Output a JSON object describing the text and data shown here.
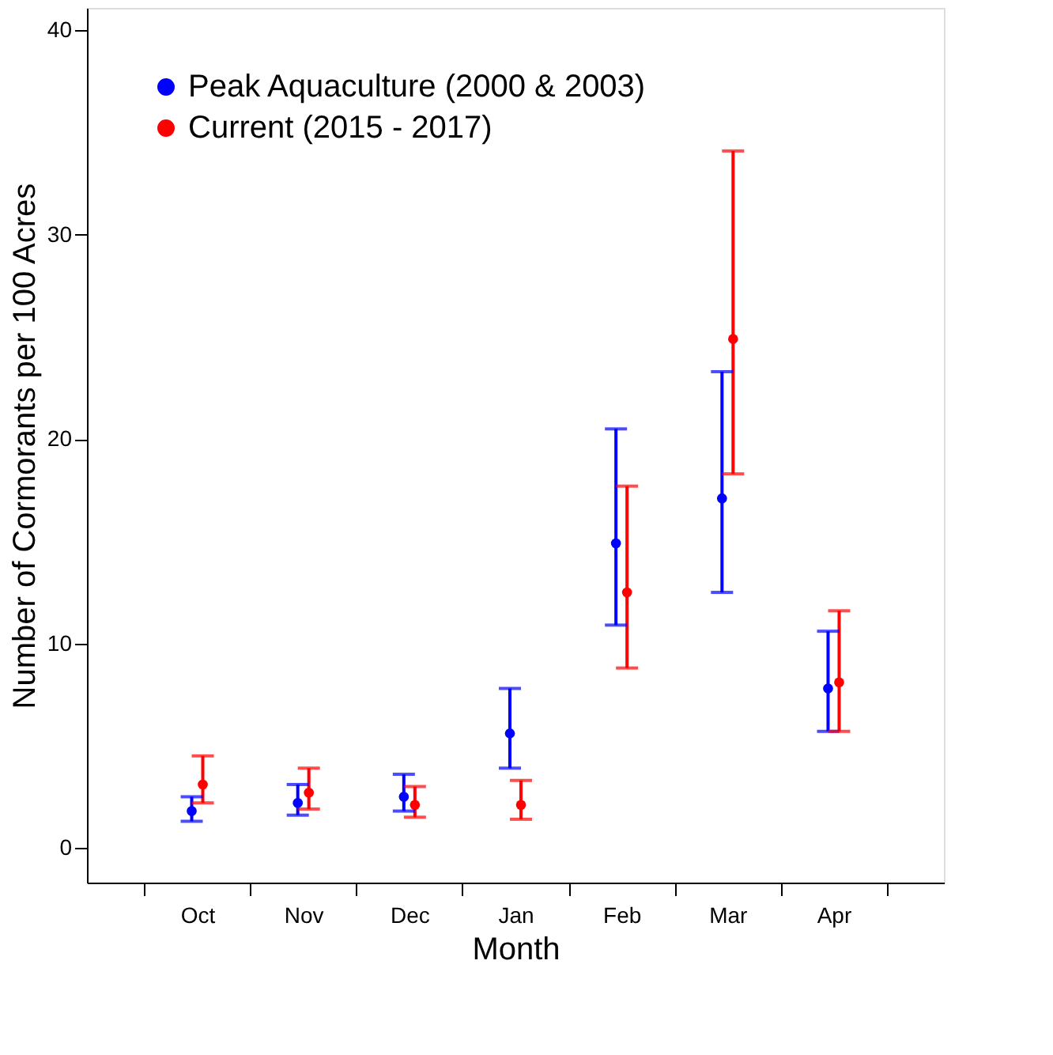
{
  "chart_data": {
    "type": "scatter",
    "xlabel": "Month",
    "ylabel": "Number of Cormorants per 100 Acres",
    "categories": [
      "Oct",
      "Nov",
      "Dec",
      "Jan",
      "Feb",
      "Mar",
      "Apr"
    ],
    "series": [
      {
        "name": "Peak Aquaculture (2000 & 2003)",
        "color": "#0000ff",
        "values": [
          1.8,
          2.2,
          2.5,
          5.6,
          14.9,
          17.1,
          7.8
        ],
        "errors": [
          [
            1.3,
            2.5
          ],
          [
            1.6,
            3.1
          ],
          [
            1.8,
            3.6
          ],
          [
            3.9,
            7.8
          ],
          [
            10.9,
            20.5
          ],
          [
            12.5,
            23.3
          ],
          [
            5.7,
            10.6
          ]
        ]
      },
      {
        "name": "Current (2015 - 2017)",
        "color": "#ff0000",
        "values": [
          3.1,
          2.7,
          2.1,
          2.1,
          12.5,
          24.9,
          8.1
        ],
        "errors": [
          [
            2.2,
            4.5
          ],
          [
            1.9,
            3.9
          ],
          [
            1.5,
            3.0
          ],
          [
            1.4,
            3.3
          ],
          [
            8.8,
            17.7
          ],
          [
            18.3,
            34.1
          ],
          [
            5.7,
            11.6
          ]
        ]
      }
    ],
    "ylim": [
      -1.7,
      41.1
    ],
    "yticks": [
      0,
      10,
      20,
      30,
      40
    ],
    "grid": false,
    "legend": "top left",
    "marker": "circle"
  }
}
